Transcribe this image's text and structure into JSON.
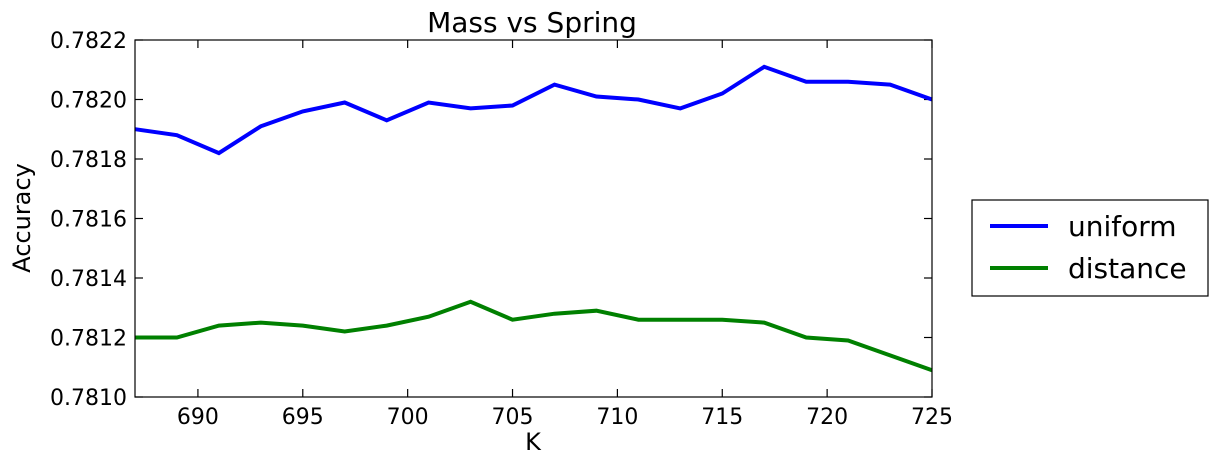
{
  "chart_data": {
    "type": "line",
    "title": "Mass vs Spring",
    "xlabel": "K",
    "ylabel": "Accuracy",
    "xlim": [
      687,
      725
    ],
    "ylim": [
      0.781,
      0.7822
    ],
    "x_ticks": [
      690,
      695,
      700,
      705,
      710,
      715,
      720,
      725
    ],
    "y_ticks": [
      0.781,
      0.7812,
      0.7814,
      0.7816,
      0.7818,
      0.782,
      0.7822
    ],
    "y_tick_labels": [
      "0.7810",
      "0.7812",
      "0.7814",
      "0.7816",
      "0.7818",
      "0.7820",
      "0.7822"
    ],
    "grid": false,
    "legend_position": "right",
    "x": [
      687,
      689,
      691,
      693,
      695,
      697,
      699,
      701,
      703,
      705,
      707,
      709,
      711,
      713,
      715,
      717,
      719,
      721,
      723,
      725
    ],
    "series": [
      {
        "name": "uniform",
        "color": "#0000ff",
        "values": [
          0.7819,
          0.78188,
          0.78182,
          0.78191,
          0.78196,
          0.78199,
          0.78193,
          0.78199,
          0.78197,
          0.78198,
          0.78205,
          0.78201,
          0.782,
          0.78197,
          0.78202,
          0.78211,
          0.78206,
          0.78206,
          0.78205,
          0.782
        ]
      },
      {
        "name": "distance",
        "color": "#008000",
        "values": [
          0.7812,
          0.7812,
          0.78124,
          0.78125,
          0.78124,
          0.78122,
          0.78124,
          0.78127,
          0.78132,
          0.78126,
          0.78128,
          0.78129,
          0.78126,
          0.78126,
          0.78126,
          0.78125,
          0.7812,
          0.78119,
          0.78114,
          0.78109
        ]
      }
    ]
  }
}
